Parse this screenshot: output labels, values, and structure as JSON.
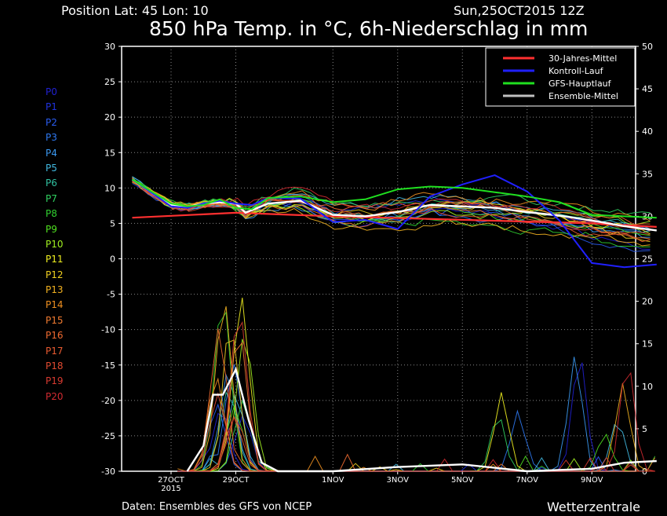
{
  "header": {
    "position_label": "Position   Lat: 45 Lon: 10",
    "date_label": "Sun,25OCT2015 12Z",
    "title": "850 hPa Temp. in °C, 6h-Niederschlag in mm"
  },
  "footer": {
    "source": "Daten: Ensembles des GFS von NCEP",
    "brand": "Wetterzentrale"
  },
  "members": [
    {
      "name": "P0",
      "color": "#2020d0"
    },
    {
      "name": "P1",
      "color": "#2032e0"
    },
    {
      "name": "P2",
      "color": "#2a5cf0"
    },
    {
      "name": "P3",
      "color": "#2e78f0"
    },
    {
      "name": "P4",
      "color": "#3a98f0"
    },
    {
      "name": "P5",
      "color": "#40b8e0"
    },
    {
      "name": "P6",
      "color": "#30c0a0"
    },
    {
      "name": "P7",
      "color": "#30d060"
    },
    {
      "name": "P8",
      "color": "#30d030"
    },
    {
      "name": "P9",
      "color": "#50e020"
    },
    {
      "name": "P10",
      "color": "#a0f020"
    },
    {
      "name": "P11",
      "color": "#f0f020"
    },
    {
      "name": "P12",
      "color": "#f0d020"
    },
    {
      "name": "P13",
      "color": "#f0b020"
    },
    {
      "name": "P14",
      "color": "#f09020"
    },
    {
      "name": "P15",
      "color": "#f07a30"
    },
    {
      "name": "P16",
      "color": "#f06a30"
    },
    {
      "name": "P17",
      "color": "#e85a30"
    },
    {
      "name": "P18",
      "color": "#e04a30"
    },
    {
      "name": "P19",
      "color": "#d83a30"
    },
    {
      "name": "P20",
      "color": "#d02a30"
    }
  ],
  "chart_data": {
    "type": "line",
    "title": "850 hPa Temp. in °C, 6h-Niederschlag in mm",
    "y_left": {
      "range": [
        -30,
        30
      ],
      "ticks": [
        30,
        25,
        20,
        15,
        10,
        5,
        0,
        -5,
        -10,
        -15,
        -20,
        -25,
        -30
      ]
    },
    "y_right": {
      "range": [
        0,
        50
      ],
      "ticks": [
        50,
        45,
        40,
        35,
        30,
        25,
        20,
        15,
        10,
        5,
        0
      ]
    },
    "x_range_days_label": [
      "26OCT",
      "11NOV"
    ],
    "x_ticks": [
      {
        "label": "27OCT",
        "sub": "2015",
        "day": 1
      },
      {
        "label": "29OCT",
        "sub": "",
        "day": 3
      },
      {
        "label": "1NOV",
        "sub": "",
        "day": 6
      },
      {
        "label": "3NOV",
        "sub": "",
        "day": 8
      },
      {
        "label": "5NOV",
        "sub": "",
        "day": 10
      },
      {
        "label": "7NOV",
        "sub": "",
        "day": 12
      },
      {
        "label": "9NOV",
        "sub": "",
        "day": 14
      }
    ],
    "grid": true,
    "legend_position": "top-right",
    "legend": [
      {
        "name": "30-Jahres-Mittel",
        "color": "#ff3030"
      },
      {
        "name": "Kontroll-Lauf",
        "color": "#2020ff"
      },
      {
        "name": "GFS-Hauptlauf",
        "color": "#20e020"
      },
      {
        "name": "Ensemble-Mittel",
        "color": "#c0c0c0"
      }
    ],
    "series": [
      {
        "name": "30-Jahres-Mittel",
        "axis": "left",
        "color": "#ff3030",
        "width": 2.2,
        "x": [
          -0.2,
          3,
          6,
          10,
          14,
          16
        ],
        "y": [
          5.8,
          6.5,
          6.0,
          5.5,
          5.0,
          4.5
        ]
      },
      {
        "name": "Ensemble-Mittel",
        "axis": "left",
        "color": "#ffffff",
        "width": 2.4,
        "x": [
          -0.2,
          0.5,
          1,
          1.5,
          2,
          2.5,
          3,
          3.3,
          4,
          5,
          6,
          7,
          8,
          9,
          10,
          11,
          12,
          13,
          14,
          15,
          16
        ],
        "y": [
          11.2,
          9,
          7.6,
          7.3,
          7.8,
          8.0,
          7.8,
          6.5,
          7.8,
          8.2,
          6.2,
          6.0,
          6.6,
          7.6,
          7.4,
          7.2,
          6.6,
          6.1,
          5.4,
          4.6,
          4.0
        ]
      },
      {
        "name": "Kontroll-Lauf",
        "axis": "left",
        "color": "#2020ff",
        "width": 2.0,
        "x": [
          -0.2,
          0.5,
          1,
          1.5,
          2,
          2.5,
          3,
          3.5,
          4,
          5,
          6,
          7,
          8,
          9,
          10,
          11,
          12,
          13,
          14,
          15,
          16
        ],
        "y": [
          11.2,
          9,
          7.4,
          7.2,
          7.8,
          8.2,
          7.8,
          7.6,
          8.6,
          8.5,
          5.2,
          5.5,
          4.2,
          8.8,
          10.5,
          11.8,
          9.5,
          5.4,
          -0.6,
          -1.2,
          -0.8
        ]
      },
      {
        "name": "GFS-Hauptlauf",
        "axis": "left",
        "color": "#20e020",
        "width": 2.0,
        "x": [
          -0.2,
          0.5,
          1,
          1.5,
          2,
          2.5,
          3,
          3.5,
          4,
          5,
          6,
          7,
          8,
          9,
          10,
          11,
          12,
          13,
          14,
          15,
          16
        ],
        "y": [
          11.2,
          9.2,
          7.8,
          7.4,
          7.6,
          8.4,
          7.2,
          7.0,
          8.6,
          8.8,
          8.0,
          8.4,
          9.8,
          10.2,
          10.0,
          9.4,
          8.8,
          8.0,
          6.2,
          6.0,
          5.8
        ]
      },
      {
        "name": "Ensemble-Mittel Niederschlag",
        "axis": "right",
        "color": "#ffffff",
        "width": 2.4,
        "x": [
          1.5,
          2,
          2.3,
          2.6,
          3,
          3.4,
          3.8,
          4.3,
          5,
          6,
          8,
          10,
          12,
          14,
          15,
          16
        ],
        "y": [
          0,
          3,
          9,
          9,
          12,
          6,
          1,
          0,
          0,
          0,
          0.5,
          0.8,
          0,
          0.3,
          1,
          1.2
        ]
      }
    ]
  }
}
